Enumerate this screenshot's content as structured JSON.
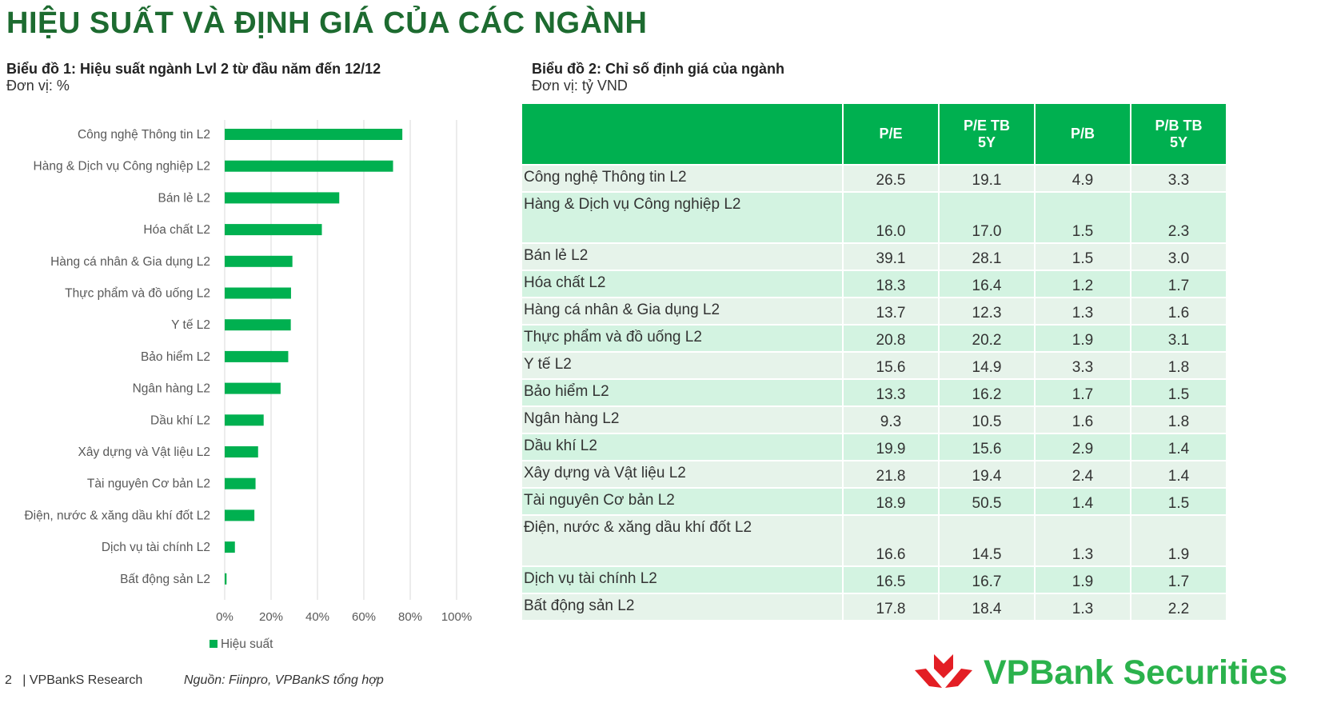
{
  "title": "HIỆU SUẤT VÀ ĐỊNH GIÁ CỦA CÁC NGÀNH",
  "chart1": {
    "subtitle_bold": "Biểu đồ 1:",
    "subtitle": " Hiệu suất ngành Lvl 2 từ đầu năm đến 12/12",
    "unit": "Đơn vị: %"
  },
  "chart2": {
    "subtitle_bold": "Biểu đồ 2:",
    "subtitle": " Chỉ số định giá của ngành",
    "unit": "Đơn vị: tỷ VND"
  },
  "chart_data": {
    "type": "bar",
    "orientation": "horizontal",
    "categories": [
      "Công nghệ Thông tin L2",
      "Hàng & Dịch vụ Công nghiệp L2",
      "Bán lẻ L2",
      "Hóa chất L2",
      "Hàng cá nhân & Gia dụng L2",
      "Thực phẩm và đồ uống L2",
      "Y tế L2",
      "Bảo hiểm L2",
      "Ngân hàng L2",
      "Dầu khí L2",
      "Xây dựng và Vật liệu L2",
      "Tài nguyên Cơ bản L2",
      "Điện, nước & xăng dầu khí đốt L2",
      "Dịch vụ tài chính L2",
      "Bất động sản L2"
    ],
    "series": [
      {
        "name": "Hiệu suất",
        "values": [
          76.6,
          72.6,
          49.4,
          41.9,
          29.2,
          28.6,
          28.5,
          27.4,
          24.1,
          16.8,
          14.4,
          13.3,
          12.8,
          4.4,
          0.8
        ],
        "color": "#00b050"
      }
    ],
    "xlim": [
      0,
      100
    ],
    "xticks": [
      "0%",
      "20%",
      "40%",
      "60%",
      "80%",
      "100%"
    ],
    "grid": true,
    "legend": "bottom-left"
  },
  "table": {
    "headers": [
      "",
      "P/E",
      "P/E TB 5Y",
      "P/B",
      "P/B TB 5Y"
    ],
    "rows": [
      [
        "Công nghệ Thông tin L2",
        "26.5",
        "19.1",
        "4.9",
        "3.3"
      ],
      [
        "Hàng & Dịch vụ Công nghiệp L2",
        "16.0",
        "17.0",
        "1.5",
        "2.3"
      ],
      [
        "Bán lẻ L2",
        "39.1",
        "28.1",
        "1.5",
        "3.0"
      ],
      [
        "Hóa chất L2",
        "18.3",
        "16.4",
        "1.2",
        "1.7"
      ],
      [
        "Hàng cá nhân & Gia dụng L2",
        "13.7",
        "12.3",
        "1.3",
        "1.6"
      ],
      [
        "Thực phẩm và đồ uống L2",
        "20.8",
        "20.2",
        "1.9",
        "3.1"
      ],
      [
        "Y tế L2",
        "15.6",
        "14.9",
        "3.3",
        "1.8"
      ],
      [
        "Bảo hiểm L2",
        "13.3",
        "16.2",
        "1.7",
        "1.5"
      ],
      [
        "Ngân hàng L2",
        "9.3",
        "10.5",
        "1.6",
        "1.8"
      ],
      [
        "Dầu khí L2",
        "19.9",
        "15.6",
        "2.9",
        "1.4"
      ],
      [
        "Xây dựng và Vật liệu L2",
        "21.8",
        "19.4",
        "2.4",
        "1.4"
      ],
      [
        "Tài nguyên Cơ bản L2",
        "18.9",
        "50.5",
        "1.4",
        "1.5"
      ],
      [
        "Điện, nước & xăng dầu khí đốt L2",
        "16.6",
        "14.5",
        "1.3",
        "1.9"
      ],
      [
        "Dịch vụ tài chính L2",
        "16.5",
        "16.7",
        "1.9",
        "1.7"
      ],
      [
        "Bất động sản L2",
        "17.8",
        "18.4",
        "1.3",
        "2.2"
      ]
    ]
  },
  "footer": {
    "page": "2",
    "brand": "| VPBankS Research",
    "source": "Nguồn:  Fiinpro,  VPBankS tổng hợp"
  },
  "logo": {
    "text": "VPBank Securities"
  }
}
